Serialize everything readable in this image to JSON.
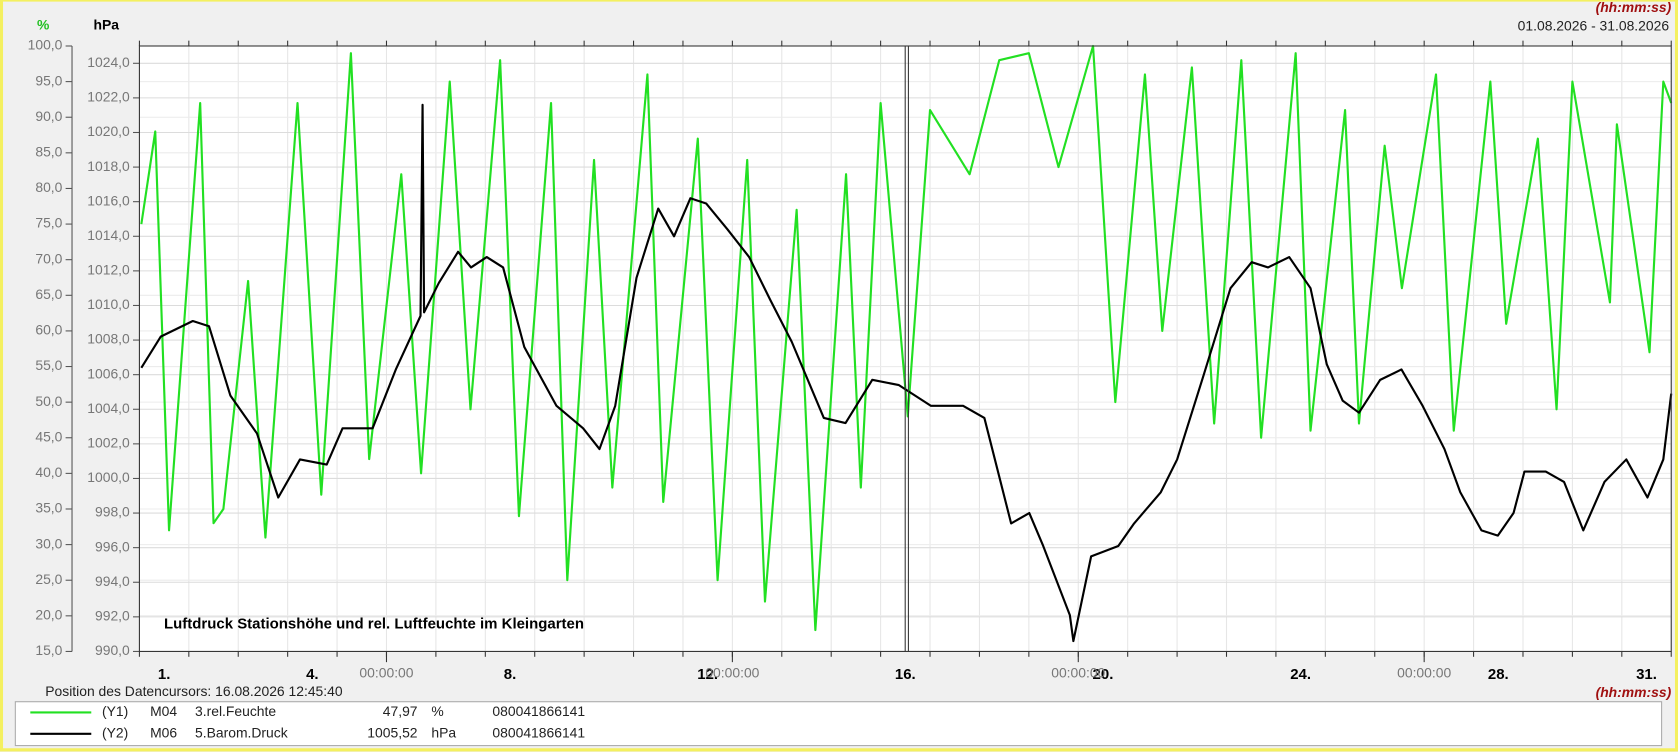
{
  "chart_data": {
    "type": "line",
    "title": "Luftdruck Stationshöhe und rel. Luftfeuchte im Kleingarten",
    "y_label": "%",
    "y2_label": "hPa",
    "time_format": "(hh:mm:ss)",
    "time_format_bottom": "(hh:mm:ss)",
    "date_range": "01.08.2026 - 31.08.2026",
    "xlim": [
      0,
      31
    ],
    "xticks": [
      {
        "value": 0.5,
        "label": "1."
      },
      {
        "value": 3.5,
        "label": "4."
      },
      {
        "value": 7.5,
        "label": "8."
      },
      {
        "value": 11.5,
        "label": "12."
      },
      {
        "value": 15.5,
        "label": "16."
      },
      {
        "value": 19.5,
        "label": "20."
      },
      {
        "value": 23.5,
        "label": "24."
      },
      {
        "value": 27.5,
        "label": "28."
      },
      {
        "value": 30.5,
        "label": "31."
      }
    ],
    "xticks_time": [
      {
        "value": 5,
        "label": "00:00:00"
      },
      {
        "value": 12,
        "label": "00:00:00"
      },
      {
        "value": 19,
        "label": "00:00:00"
      },
      {
        "value": 26,
        "label": "00:00:00"
      }
    ],
    "ylim": [
      15,
      100
    ],
    "yticks": [
      {
        "value": 15,
        "label": "15,0"
      },
      {
        "value": 20,
        "label": "20,0"
      },
      {
        "value": 25,
        "label": "25,0"
      },
      {
        "value": 30,
        "label": "30,0"
      },
      {
        "value": 35,
        "label": "35,0"
      },
      {
        "value": 40,
        "label": "40,0"
      },
      {
        "value": 45,
        "label": "45,0"
      },
      {
        "value": 50,
        "label": "50,0"
      },
      {
        "value": 55,
        "label": "55,0"
      },
      {
        "value": 60,
        "label": "60,0"
      },
      {
        "value": 65,
        "label": "65,0"
      },
      {
        "value": 70,
        "label": "70,0"
      },
      {
        "value": 75,
        "label": "75,0"
      },
      {
        "value": 80,
        "label": "80,0"
      },
      {
        "value": 85,
        "label": "85,0"
      },
      {
        "value": 90,
        "label": "90,0"
      },
      {
        "value": 95,
        "label": "95,0"
      },
      {
        "value": 100,
        "label": "100,0"
      }
    ],
    "y2lim": [
      990,
      1025
    ],
    "y2ticks": [
      {
        "value": 990,
        "label": "990,0"
      },
      {
        "value": 992,
        "label": "992,0"
      },
      {
        "value": 994,
        "label": "994,0"
      },
      {
        "value": 996,
        "label": "996,0"
      },
      {
        "value": 998,
        "label": "998,0"
      },
      {
        "value": 1000,
        "label": "1000,0"
      },
      {
        "value": 1002,
        "label": "1002,0"
      },
      {
        "value": 1004,
        "label": "1004,0"
      },
      {
        "value": 1006,
        "label": "1006,0"
      },
      {
        "value": 1008,
        "label": "1008,0"
      },
      {
        "value": 1010,
        "label": "1010,0"
      },
      {
        "value": 1012,
        "label": "1012,0"
      },
      {
        "value": 1014,
        "label": "1014,0"
      },
      {
        "value": 1016,
        "label": "1016,0"
      },
      {
        "value": 1018,
        "label": "1018,0"
      },
      {
        "value": 1020,
        "label": "1020,0"
      },
      {
        "value": 1022,
        "label": "1022,0"
      },
      {
        "value": 1024,
        "label": "1024,0"
      }
    ],
    "grid": true,
    "cursor": {
      "label": "Position des Datencursors: 16.08.2026 12:45:40",
      "x": 15.53
    },
    "series": [
      {
        "name": "3.rel.Feuchte",
        "color": "#22e022",
        "axis": "y",
        "legend": [
          "(Y1)",
          "M04",
          "3.rel.Feuchte",
          "47,97",
          "%",
          "080041866141"
        ],
        "x": [
          0.04,
          0.32,
          0.6,
          1.23,
          1.5,
          1.7,
          2.2,
          2.55,
          3.2,
          3.68,
          4.28,
          4.65,
          5.3,
          5.7,
          6.28,
          6.7,
          7.3,
          7.68,
          8.33,
          8.66,
          9.2,
          9.57,
          10.28,
          10.6,
          11.3,
          11.7,
          12.3,
          12.66,
          13.3,
          13.68,
          14.3,
          14.6,
          15.0,
          15.55,
          16.0,
          16.8,
          17.4,
          18.0,
          18.6,
          19.3,
          19.75,
          20.35,
          20.7,
          21.3,
          21.75,
          22.3,
          22.7,
          23.4,
          23.7,
          24.4,
          24.68,
          25.2,
          25.55,
          26.24,
          26.6,
          27.34,
          27.66,
          28.3,
          28.68,
          29.0,
          29.76,
          29.9,
          30.56,
          30.84,
          31.0
        ],
        "values": [
          75,
          88,
          32,
          92,
          33,
          35,
          67,
          31,
          92,
          37,
          99,
          42,
          82,
          40,
          95,
          49,
          98,
          34,
          92,
          25,
          84,
          38,
          96,
          36,
          87,
          25,
          84,
          22,
          77,
          18,
          82,
          38,
          92,
          48,
          91,
          82,
          98,
          99,
          83,
          100,
          50,
          96,
          60,
          97,
          47,
          98,
          45,
          99,
          46,
          91,
          47,
          86,
          66,
          96,
          46,
          95,
          61,
          87,
          49,
          95,
          64,
          89,
          57,
          95,
          92
        ]
      },
      {
        "name": "5.Barom.Druck",
        "color": "#000000",
        "axis": "y2",
        "legend": [
          "(Y2)",
          "M06",
          "5.Barom.Druck",
          "1005,52",
          "hPa",
          "080041866141"
        ],
        "x": [
          0.04,
          0.43,
          1.08,
          1.41,
          1.84,
          2.38,
          2.81,
          3.25,
          3.79,
          4.11,
          4.72,
          5.19,
          5.69,
          5.73,
          5.76,
          6.06,
          6.45,
          6.71,
          7.03,
          7.36,
          7.79,
          8.44,
          8.98,
          9.31,
          9.63,
          10.06,
          10.5,
          10.82,
          11.15,
          11.47,
          11.9,
          12.34,
          12.77,
          13.2,
          13.85,
          14.29,
          14.83,
          15.37,
          16.02,
          16.67,
          17.1,
          17.64,
          18.01,
          18.29,
          18.83,
          18.9,
          19.26,
          19.81,
          20.13,
          20.67,
          21.0,
          21.54,
          22.08,
          22.51,
          22.84,
          23.27,
          23.7,
          24.03,
          24.35,
          24.68,
          25.11,
          25.54,
          25.97,
          26.41,
          26.73,
          27.16,
          27.49,
          27.81,
          28.03,
          28.46,
          28.83,
          29.22,
          29.65,
          30.09,
          30.52,
          30.84,
          31.0
        ],
        "values": [
          1006.4,
          1008.2,
          1009.1,
          1008.8,
          1004.8,
          1002.6,
          998.9,
          1001.1,
          1000.8,
          1002.9,
          1002.9,
          1006.3,
          1009.4,
          1021.6,
          1009.6,
          1011.3,
          1013.1,
          1012.2,
          1012.8,
          1012.2,
          1007.6,
          1004.2,
          1002.9,
          1001.7,
          1004.2,
          1011.6,
          1015.6,
          1014.0,
          1016.2,
          1015.9,
          1014.4,
          1012.8,
          1010.3,
          1007.9,
          1003.5,
          1003.2,
          1005.7,
          1005.4,
          1004.2,
          1004.2,
          1003.5,
          997.4,
          998.0,
          996.1,
          992.1,
          990.6,
          995.5,
          996.1,
          997.4,
          999.2,
          1001.1,
          1006.0,
          1011.0,
          1012.5,
          1012.2,
          1012.8,
          1011.0,
          1006.6,
          1004.5,
          1003.8,
          1005.7,
          1006.3,
          1004.2,
          1001.7,
          999.2,
          997.0,
          996.7,
          998.0,
          1000.4,
          1000.4,
          999.8,
          997.0,
          999.8,
          1001.1,
          998.9,
          1001.1,
          1004.9
        ]
      }
    ]
  }
}
